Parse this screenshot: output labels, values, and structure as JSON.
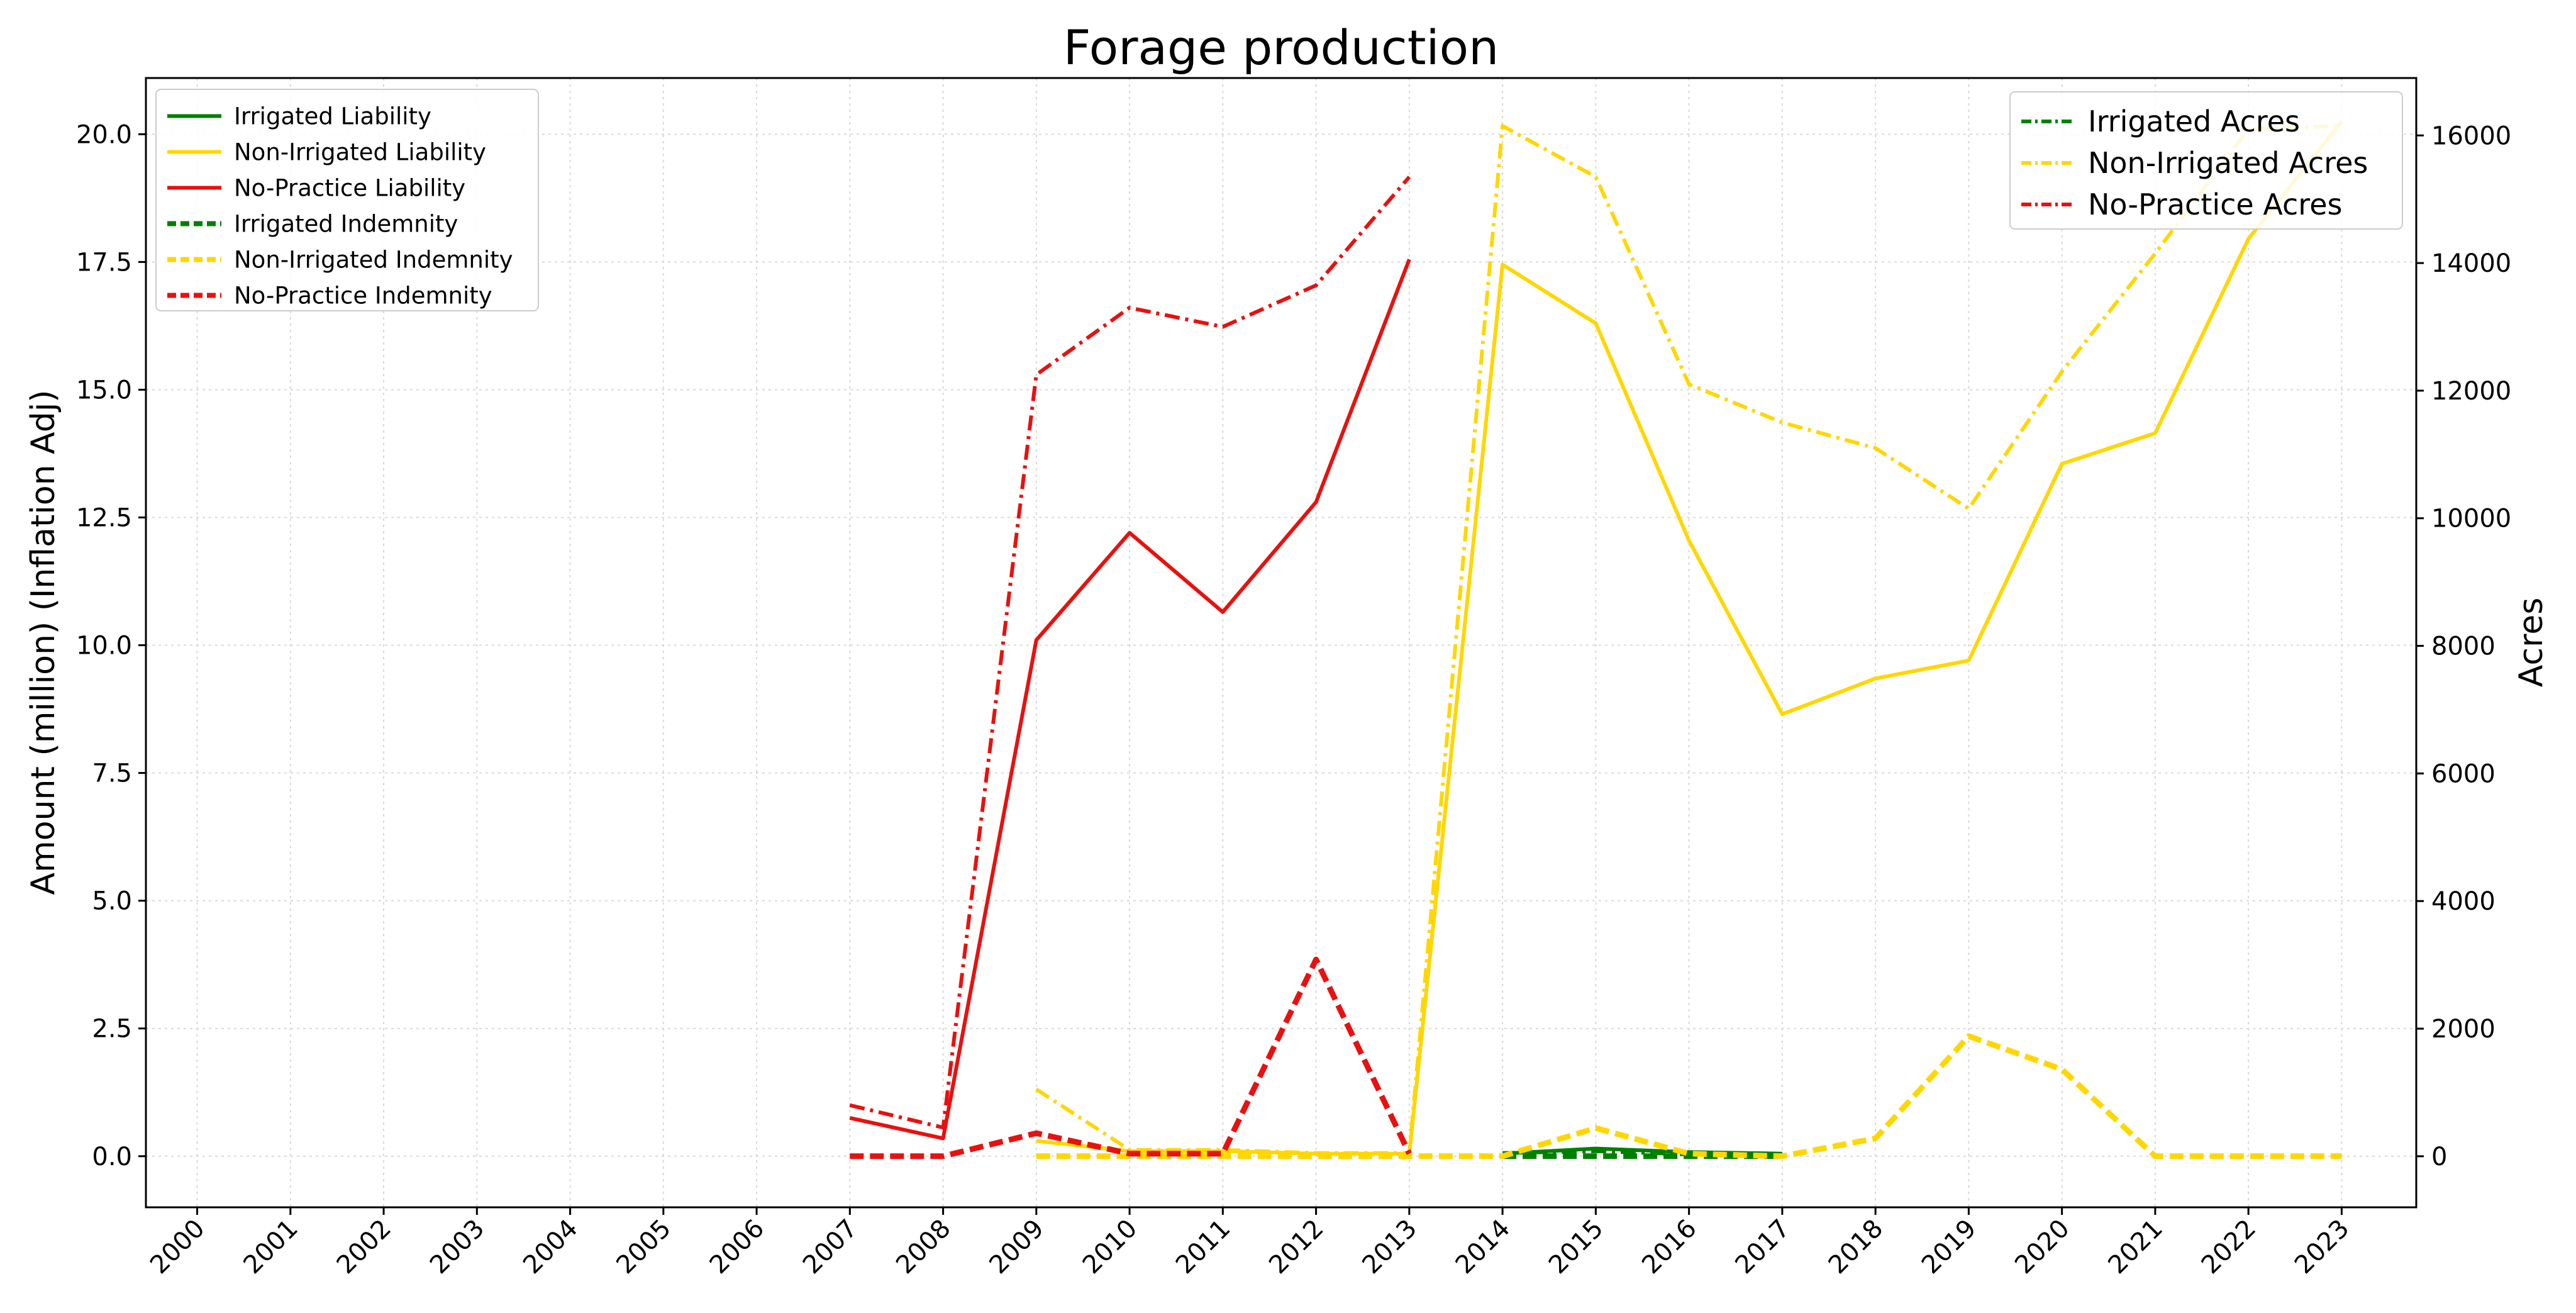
{
  "chart_data": {
    "type": "line",
    "title": "Forage production",
    "ylabel_left": "Amount (million) (Inflation Adj)",
    "ylabel_right": "Acres",
    "x": [
      2000,
      2001,
      2002,
      2003,
      2004,
      2005,
      2006,
      2007,
      2008,
      2009,
      2010,
      2011,
      2012,
      2013,
      2014,
      2015,
      2016,
      2017,
      2018,
      2019,
      2020,
      2021,
      2022,
      2023
    ],
    "x_tick_labels": [
      "2000",
      "2001",
      "2002",
      "2003",
      "2004",
      "2005",
      "2006",
      "2007",
      "2008",
      "2009",
      "2010",
      "2011",
      "2012",
      "2013",
      "2014",
      "2015",
      "2016",
      "2017",
      "2018",
      "2019",
      "2020",
      "2021",
      "2022",
      "2023"
    ],
    "ylim_left": [
      -1.0,
      21.1
    ],
    "ylim_right": [
      -800,
      16900
    ],
    "y_ticks_left": [
      "0.0",
      "2.5",
      "5.0",
      "7.5",
      "10.0",
      "12.5",
      "15.0",
      "17.5",
      "20.0"
    ],
    "y_ticks_right": [
      "0",
      "2000",
      "4000",
      "6000",
      "8000",
      "10000",
      "12000",
      "14000",
      "16000"
    ],
    "grid": true,
    "legend_left_placement": "top-left",
    "legend_right_placement": "top-right",
    "colors": {
      "irrigated": "#008000",
      "non_irrigated": "#FFD700",
      "no_practice": "#E8110F"
    },
    "series_left": [
      {
        "name": "Irrigated Liability",
        "style": "solid",
        "color": "#008000",
        "x": [
          2014,
          2015,
          2016,
          2017
        ],
        "values": [
          0.05,
          0.15,
          0.08,
          0.05
        ]
      },
      {
        "name": "Non-Irrigated Liability",
        "style": "solid",
        "color": "#FFD700",
        "x": [
          2009,
          2010,
          2011,
          2012,
          2013,
          2014,
          2015,
          2016,
          2017,
          2018,
          2019,
          2020,
          2021,
          2022,
          2023
        ],
        "values": [
          0.3,
          0.1,
          0.1,
          0.05,
          0.05,
          17.45,
          16.3,
          12.05,
          8.65,
          9.35,
          9.7,
          13.55,
          14.15,
          17.95,
          20.25
        ]
      },
      {
        "name": "No-Practice Liability",
        "style": "solid",
        "color": "#E8110F",
        "x": [
          2007,
          2008,
          2009,
          2010,
          2011,
          2012,
          2013
        ],
        "values": [
          0.75,
          0.35,
          10.1,
          12.2,
          10.65,
          12.8,
          17.55
        ]
      },
      {
        "name": "Irrigated Indemnity",
        "style": "dashed",
        "color": "#008000",
        "x": [
          2014,
          2015,
          2016,
          2017
        ],
        "values": [
          0.0,
          0.0,
          0.0,
          0.0
        ]
      },
      {
        "name": "Non-Irrigated Indemnity",
        "style": "dashed",
        "color": "#FFD700",
        "x": [
          2009,
          2010,
          2011,
          2012,
          2013,
          2014,
          2015,
          2016,
          2017,
          2018,
          2019,
          2020,
          2021,
          2022,
          2023
        ],
        "values": [
          0.0,
          0.0,
          0.0,
          0.0,
          0.0,
          0.0,
          0.55,
          0.05,
          0.0,
          0.35,
          2.35,
          1.7,
          0.0,
          0.0,
          0.0
        ]
      },
      {
        "name": "No-Practice Indemnity",
        "style": "dashed",
        "color": "#E8110F",
        "x": [
          2007,
          2008,
          2009,
          2010,
          2011,
          2012,
          2013
        ],
        "values": [
          0.0,
          0.0,
          0.45,
          0.05,
          0.05,
          3.85,
          0.05
        ]
      }
    ],
    "series_right": [
      {
        "name": "Irrigated Acres",
        "style": "dashdot",
        "color": "#008000",
        "x": [
          2014,
          2015,
          2016,
          2017
        ],
        "values": [
          50,
          80,
          30,
          30
        ]
      },
      {
        "name": "Non-Irrigated Acres",
        "style": "dashdot",
        "color": "#FFD700",
        "x": [
          2009,
          2010,
          2011,
          2012,
          2013,
          2014,
          2015,
          2016,
          2017,
          2018,
          2019,
          2020,
          2021,
          2022,
          2023
        ],
        "values": [
          1050,
          100,
          100,
          50,
          50,
          16150,
          15350,
          12100,
          11500,
          11100,
          10150,
          12300,
          14150,
          16100,
          16150
        ]
      },
      {
        "name": "No-Practice Acres",
        "style": "dashdot",
        "color": "#E8110F",
        "x": [
          2007,
          2008,
          2009,
          2010,
          2011,
          2012,
          2013
        ],
        "values": [
          800,
          450,
          12250,
          13300,
          13000,
          13650,
          15350
        ]
      }
    ]
  }
}
